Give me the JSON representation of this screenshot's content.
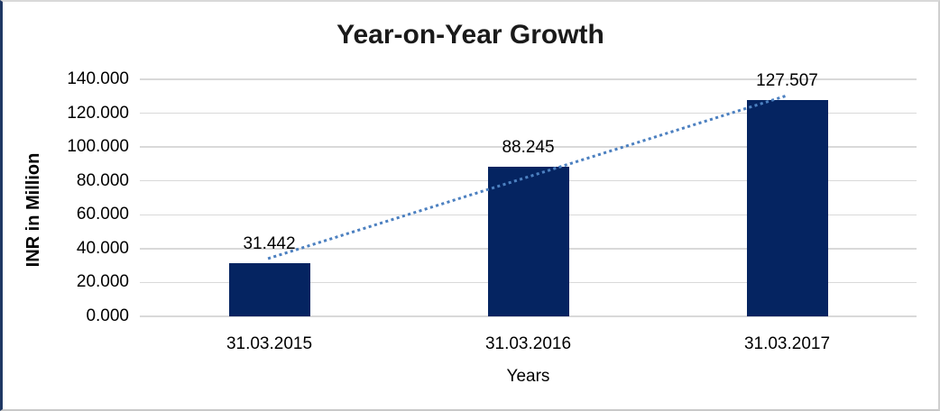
{
  "chart_data": {
    "type": "bar",
    "title": "Year-on-Year Growth",
    "categories": [
      "31.03.2015",
      "31.03.2016",
      "31.03.2017"
    ],
    "values": [
      31.442,
      88.245,
      127.507
    ],
    "data_labels": [
      "31.442",
      "88.245",
      "127.507"
    ],
    "xlabel": "Years",
    "ylabel": "INR in Million",
    "ylim": [
      0,
      140
    ],
    "ytick_step": 20,
    "ytick_labels": [
      "140.000",
      "120.000",
      "100.000",
      "80.000",
      "60.000",
      "40.000",
      "20.000",
      "0.000"
    ],
    "grid": true,
    "legend": "none",
    "trendline": {
      "type": "linear",
      "style": "dotted"
    },
    "colors": {
      "bar": "#052461",
      "trendline": "#4c80c0",
      "gridline": "#d9d9d9",
      "title_text": "#1a1a1a",
      "axis_text": "#000000",
      "frame_left_border": "#1f3864"
    }
  }
}
